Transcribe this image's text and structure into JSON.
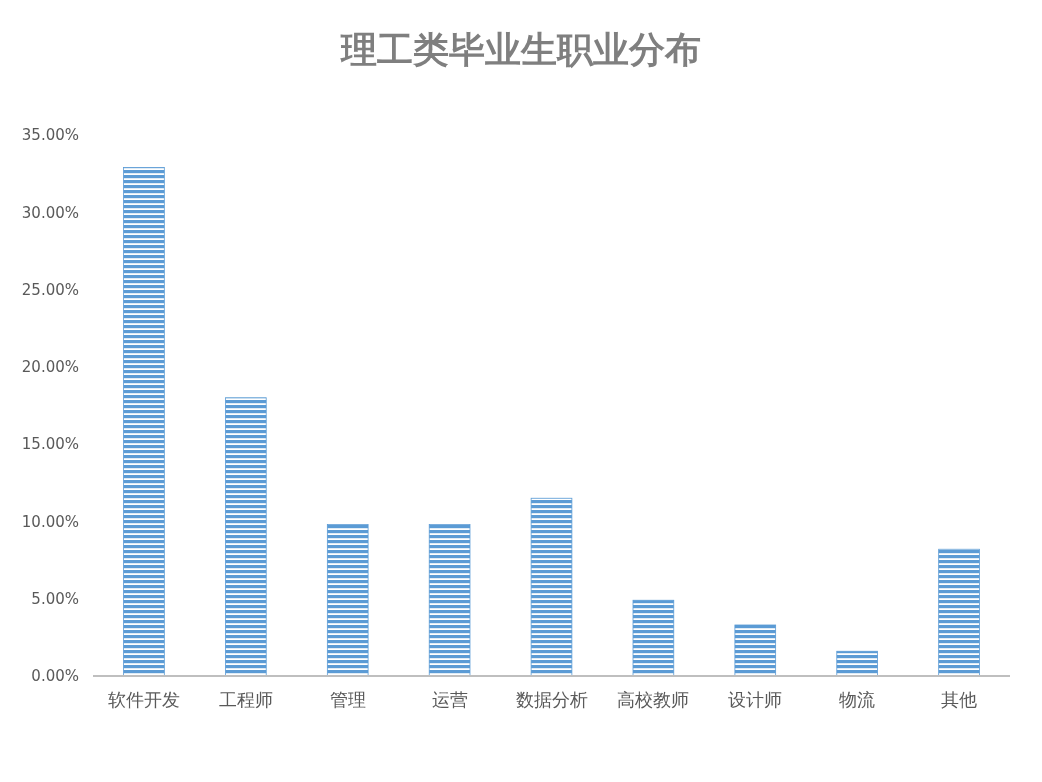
{
  "chart_data": {
    "type": "bar",
    "title": "理工类毕业生职业分布",
    "categories": [
      "软件开发",
      "工程师",
      "管理",
      "运营",
      "数据分析",
      "高校教师",
      "设计师",
      "物流",
      "其他"
    ],
    "values": [
      32.9,
      18.0,
      9.8,
      9.8,
      11.5,
      4.9,
      3.3,
      1.6,
      8.2
    ],
    "color": "#5b9bd5",
    "ylim": [
      0,
      35
    ],
    "yticks": [
      {
        "value": 0,
        "label": "0.00%"
      },
      {
        "value": 5,
        "label": "5.00%"
      },
      {
        "value": 10,
        "label": "10.00%"
      },
      {
        "value": 15,
        "label": "15.00%"
      },
      {
        "value": 20,
        "label": "20.00%"
      },
      {
        "value": 25,
        "label": "25.00%"
      },
      {
        "value": 30,
        "label": "30.00%"
      },
      {
        "value": 35,
        "label": "35.00%"
      }
    ],
    "grid": false
  }
}
